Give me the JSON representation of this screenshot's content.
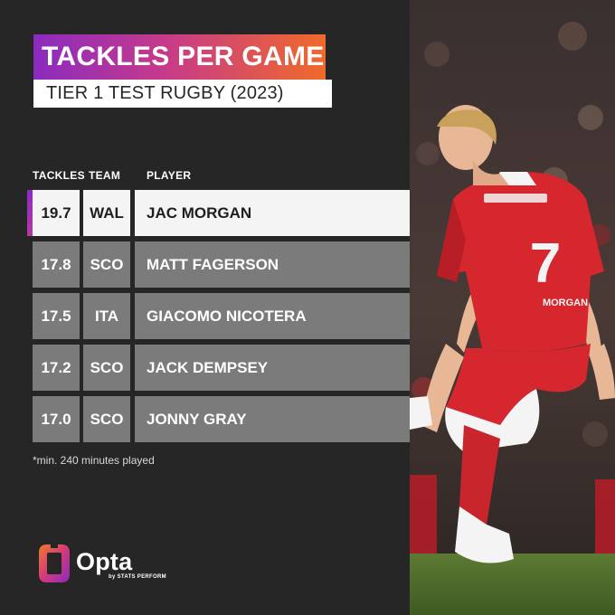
{
  "header": {
    "title": "TACKLES PER GAME",
    "subtitle": "TIER 1 TEST RUGBY (2023)"
  },
  "columns": {
    "tackles": "TACKLES",
    "team": "TEAM",
    "player": "PLAYER"
  },
  "rows": [
    {
      "tackles": "19.7",
      "team": "WAL",
      "player": "JAC MORGAN",
      "highlight": true
    },
    {
      "tackles": "17.8",
      "team": "SCO",
      "player": "MATT FAGERSON"
    },
    {
      "tackles": "17.5",
      "team": "ITA",
      "player": "GIACOMO NICOTERA"
    },
    {
      "tackles": "17.2",
      "team": "SCO",
      "player": "JACK DEMPSEY"
    },
    {
      "tackles": "17.0",
      "team": "SCO",
      "player": "JONNY GRAY"
    }
  ],
  "footnote": "*min. 240 minutes played",
  "brand": {
    "name": "Opta",
    "byline": "by STATS PERFORM"
  },
  "photo": {
    "jersey_number": "7",
    "jersey_name": "MORGAN"
  },
  "colors": {
    "background": "#262626",
    "row": "#7b7b7b",
    "highlight_row": "#f4f4f4",
    "accent_start": "#8b2bc0",
    "accent_end": "#f06a2a",
    "jersey": "#d6262e"
  }
}
